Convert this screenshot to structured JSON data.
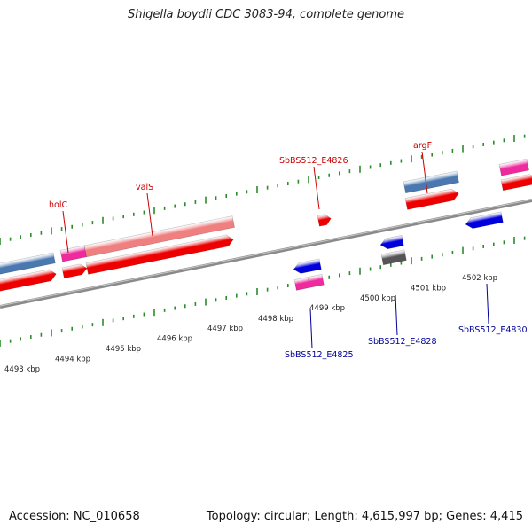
{
  "title": "Shigella boydii CDC 3083-94, complete genome",
  "footer": {
    "accession": "Accession: NC_010658",
    "stats": "Topology: circular; Length: 4,615,997 bp; Genes: 4,415"
  },
  "colors": {
    "backbone": "#8a8a8a",
    "gene_red": "#ee0000",
    "gene_light_red": "#f08080",
    "gene_steel_blue": "#4a78b0",
    "gene_pink": "#ee2a9e",
    "gene_blue": "#0000dd",
    "gene_gray": "#555555",
    "tick_green": "#2e8b2e",
    "label_red": "#cc0000",
    "label_blue": "#000099"
  },
  "scale": {
    "ticks": [
      {
        "label": "4493 kbp",
        "kbp": 4493
      },
      {
        "label": "4494 kbp",
        "kbp": 4494
      },
      {
        "label": "4495 kbp",
        "kbp": 4495
      },
      {
        "label": "4496 kbp",
        "kbp": 4496
      },
      {
        "label": "4497 kbp",
        "kbp": 4497
      },
      {
        "label": "4498 kbp",
        "kbp": 4498
      },
      {
        "label": "4499 kbp",
        "kbp": 4499
      },
      {
        "label": "4500 kbp",
        "kbp": 4500
      },
      {
        "label": "4501 kbp",
        "kbp": 4501
      },
      {
        "label": "4502 kbp",
        "kbp": 4502
      }
    ]
  },
  "gene_labels": [
    {
      "name": "holC",
      "strand": "forward"
    },
    {
      "name": "valS",
      "strand": "forward"
    },
    {
      "name": "SbBS512_E4826",
      "strand": "forward"
    },
    {
      "name": "argF",
      "strand": "forward"
    },
    {
      "name": "SbBS512_E4825",
      "strand": "reverse"
    },
    {
      "name": "SbBS512_E4828",
      "strand": "reverse"
    },
    {
      "name": "SbBS512_E4830",
      "strand": "reverse"
    }
  ]
}
